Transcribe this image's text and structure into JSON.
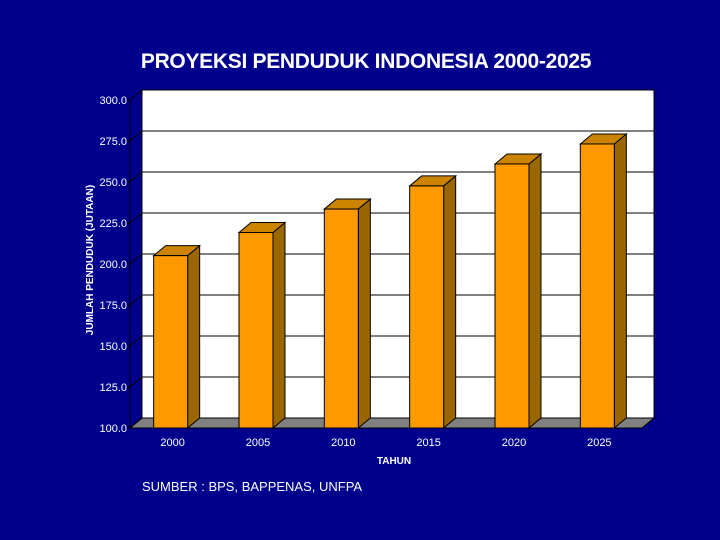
{
  "slide": {
    "source_note": "SUMBER : BPS, BAPPENAS, UNFPA"
  },
  "colors": {
    "background": "#00008C",
    "plot_area": "#FFFFFF",
    "bar_front": "#FF9900",
    "bar_side": "#996600",
    "bar_top": "#CC8400",
    "floor": "#808080",
    "text": "#FFFFFF",
    "axis_text": "#000000"
  },
  "chart_data": {
    "type": "bar",
    "title": "PROYEKSI PENDUDUK INDONESIA 2000-2025",
    "xlabel": "TAHUN",
    "ylabel": "JUMLAH PENDUDUK (JUTAAN)",
    "categories": [
      "2000",
      "2005",
      "2010",
      "2015",
      "2020",
      "2025"
    ],
    "values": [
      205.1,
      219.2,
      233.5,
      247.6,
      261.0,
      273.2
    ],
    "value_labels": [
      "205.1",
      "219.2",
      "233.5",
      "247.6",
      "261.0",
      "273.2"
    ],
    "ylim": [
      100,
      300
    ],
    "yticks": [
      "100.0",
      "125.0",
      "150.0",
      "175.0",
      "200.0",
      "225.0",
      "250.0",
      "275.0",
      "300.0"
    ],
    "grid": true,
    "style": "3d-bar"
  }
}
